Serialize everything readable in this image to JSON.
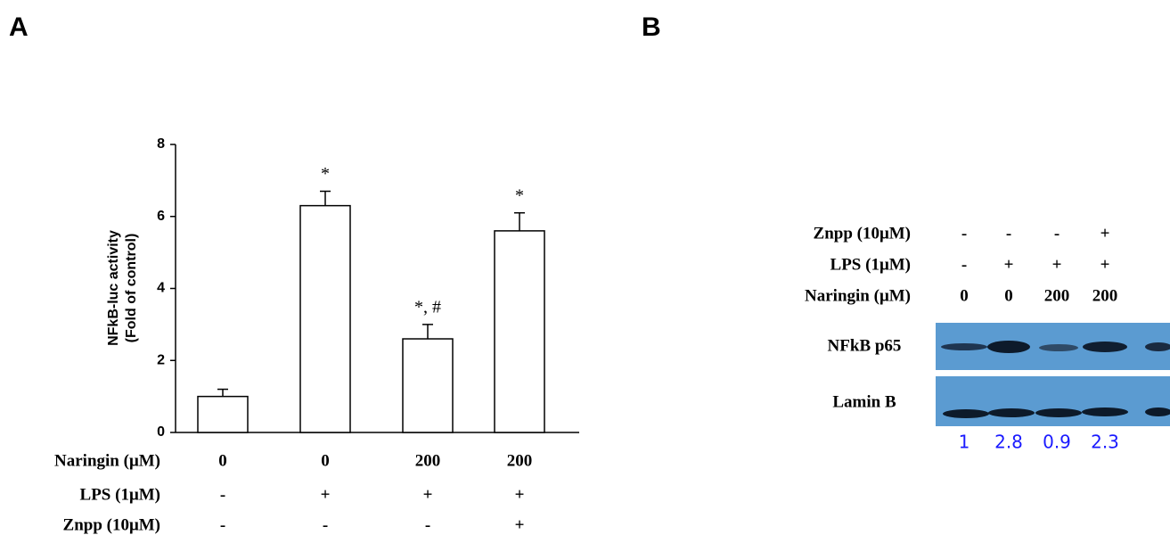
{
  "panels": [
    "A",
    "B"
  ],
  "chart_data": {
    "type": "bar",
    "y_label": [
      "NFkB-luc activity",
      "(Fold of control)"
    ],
    "values": [
      1,
      6.3,
      2.6,
      5.6
    ],
    "errors": [
      0.2,
      0.4,
      0.4,
      0.5
    ],
    "annotations": [
      null,
      "*",
      "*, #",
      "*"
    ],
    "color": "#ffffff",
    "ylim": [
      0,
      8
    ],
    "yticks": [
      0,
      2,
      4,
      6,
      8
    ],
    "treatments": [
      {
        "name": "Naringin (μM)",
        "values": [
          "0",
          "0",
          "200",
          "200"
        ]
      },
      {
        "name": "LPS (1μM)",
        "values": [
          "-",
          "+",
          "+",
          "+"
        ]
      },
      {
        "name": "Znpp (10μM)",
        "values": [
          "-",
          "-",
          "-",
          "+"
        ]
      }
    ]
  },
  "blot": {
    "treatments": [
      {
        "name": "Znpp (10μM)",
        "values": [
          "-",
          "-",
          "-",
          "+"
        ]
      },
      {
        "name": "LPS (1μM)",
        "values": [
          "-",
          "+",
          "+",
          "+"
        ]
      },
      {
        "name": "Naringin (μM)",
        "values": [
          "0",
          "0",
          "200",
          "200"
        ]
      }
    ],
    "bands": [
      "NFkB p65",
      "Lamin B"
    ],
    "quantification": [
      1,
      2.8,
      0.9,
      2.3
    ]
  }
}
